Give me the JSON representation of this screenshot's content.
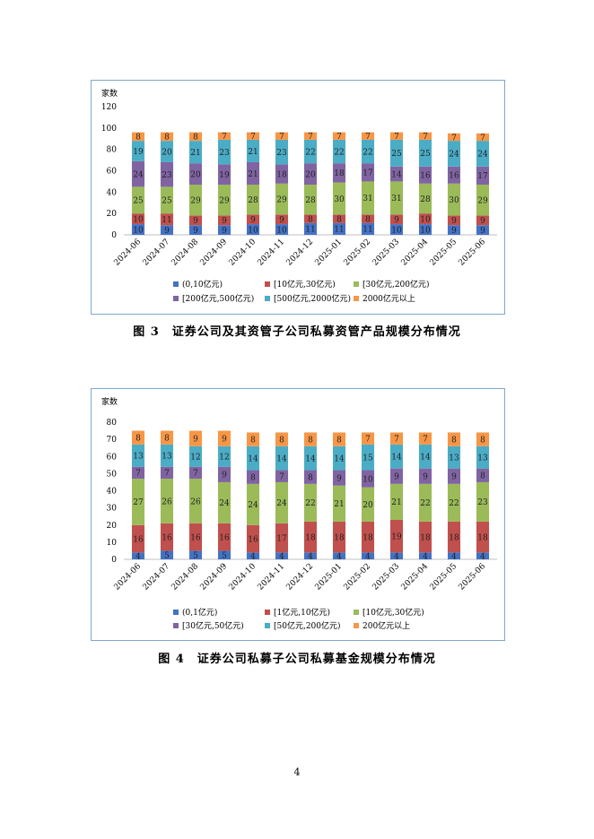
{
  "page": {
    "number": "4"
  },
  "chart_data": [
    {
      "type": "bar",
      "stacked": true,
      "ylabel": "家数",
      "ylim": [
        0,
        120
      ],
      "yticks": [
        0,
        20,
        40,
        60,
        80,
        100,
        120
      ],
      "grid": false,
      "legend_position": "bottom",
      "categories": [
        "2024-06",
        "2024-07",
        "2024-08",
        "2024-09",
        "2024-10",
        "2024-11",
        "2024-12",
        "2025-01",
        "2025-02",
        "2025-03",
        "2025-04",
        "2025-05",
        "2025-06"
      ],
      "series": [
        {
          "name": "(0,10亿元)",
          "color": "#4472c4",
          "values": [
            10,
            9,
            9,
            9,
            10,
            10,
            11,
            11,
            11,
            10,
            10,
            9,
            9
          ]
        },
        {
          "name": "[10亿元,30亿元)",
          "color": "#c0504d",
          "values": [
            10,
            11,
            9,
            9,
            9,
            9,
            8,
            8,
            8,
            9,
            10,
            9,
            9
          ]
        },
        {
          "name": "[30亿元,200亿元)",
          "color": "#9bbb59",
          "values": [
            25,
            25,
            29,
            29,
            28,
            29,
            28,
            30,
            31,
            31,
            28,
            30,
            29
          ]
        },
        {
          "name": "[200亿元,500亿元)",
          "color": "#8064a2",
          "values": [
            24,
            23,
            20,
            19,
            21,
            18,
            20,
            18,
            17,
            14,
            16,
            16,
            17
          ]
        },
        {
          "name": "[500亿元,2000亿元)",
          "color": "#4bacc6",
          "values": [
            19,
            20,
            21,
            23,
            21,
            23,
            22,
            22,
            22,
            25,
            25,
            24,
            24
          ]
        },
        {
          "name": "2000亿元以上",
          "color": "#f79646",
          "values": [
            8,
            8,
            8,
            7,
            7,
            7,
            7,
            7,
            7,
            7,
            7,
            7,
            7
          ]
        }
      ],
      "caption": "图 3　证券公司及其资管子公司私募资管产品规模分布情况"
    },
    {
      "type": "bar",
      "stacked": true,
      "ylabel": "家数",
      "ylim": [
        0,
        80
      ],
      "yticks": [
        0,
        10,
        20,
        30,
        40,
        50,
        60,
        70,
        80
      ],
      "grid": false,
      "legend_position": "bottom",
      "categories": [
        "2024-06",
        "2024-07",
        "2024-08",
        "2024-09",
        "2024-10",
        "2024-11",
        "2024-12",
        "2025-01",
        "2025-02",
        "2025-03",
        "2025-04",
        "2025-05",
        "2025-06"
      ],
      "series": [
        {
          "name": "(0,1亿元)",
          "color": "#4472c4",
          "values": [
            4,
            5,
            5,
            5,
            4,
            4,
            4,
            4,
            4,
            4,
            4,
            4,
            4
          ]
        },
        {
          "name": "[1亿元,10亿元)",
          "color": "#c0504d",
          "values": [
            16,
            16,
            16,
            16,
            16,
            17,
            18,
            18,
            18,
            19,
            18,
            18,
            18
          ]
        },
        {
          "name": "[10亿元,30亿元)",
          "color": "#9bbb59",
          "values": [
            27,
            26,
            26,
            24,
            24,
            24,
            22,
            21,
            20,
            21,
            22,
            22,
            23
          ]
        },
        {
          "name": "[30亿元,50亿元)",
          "color": "#8064a2",
          "values": [
            7,
            7,
            7,
            9,
            8,
            7,
            8,
            9,
            10,
            9,
            9,
            9,
            8
          ]
        },
        {
          "name": "[50亿元,200亿元)",
          "color": "#4bacc6",
          "values": [
            13,
            13,
            12,
            12,
            14,
            14,
            14,
            14,
            15,
            14,
            14,
            13,
            13
          ]
        },
        {
          "name": "200亿元以上",
          "color": "#f79646",
          "values": [
            8,
            8,
            9,
            9,
            8,
            8,
            8,
            8,
            7,
            7,
            7,
            8,
            8
          ]
        }
      ],
      "caption": "图 4　证券公司私募子公司私募基金规模分布情况"
    }
  ]
}
